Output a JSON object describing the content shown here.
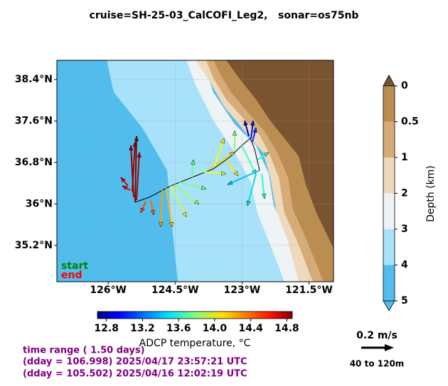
{
  "title": "cruise=SH-25-03_CalCOFI_Leg2,   sonar=os75nb",
  "map": {
    "xlim": [
      -127.15,
      -120.95
    ],
    "ylim": [
      34.5,
      38.77
    ],
    "lat_ticks": [
      {
        "value": 38.4,
        "label": "38.4°N"
      },
      {
        "value": 37.6,
        "label": "37.6°N"
      },
      {
        "value": 36.8,
        "label": "36.8°N"
      },
      {
        "value": 36,
        "label": "36°N"
      },
      {
        "value": 35.2,
        "label": "35.2°N"
      }
    ],
    "lon_ticks": [
      {
        "value": -126,
        "label": "126°W"
      },
      {
        "value": -124.5,
        "label": "124.5°W"
      },
      {
        "value": -123,
        "label": "123°W"
      },
      {
        "value": -121.5,
        "label": "121.5°W"
      }
    ],
    "legend": [
      {
        "label": "start",
        "color": "#008000"
      },
      {
        "label": "end",
        "color": "#ff0000"
      }
    ]
  },
  "temperature_colorbar": {
    "label": "ADCP temperature, °C",
    "lim": [
      12.7,
      14.86
    ],
    "ticks": [
      12.8,
      13.2,
      13.6,
      {
        "value": 14,
        "label": "14.0"
      },
      14.4,
      14.8
    ]
  },
  "depth_colorbar": {
    "label": "Depth (km)",
    "ticks": [
      0,
      0.5,
      1,
      2,
      3,
      4,
      5
    ],
    "colors": [
      "#bb8d50",
      "#d6ab78",
      "#efd9bd",
      "#eef3f6",
      "#a8e2fa",
      "#52bded"
    ],
    "top_color": "#7a5430",
    "bottom_color": "#52bded"
  },
  "scale": {
    "speed": "0.2 m/s",
    "depth_range": "40 to 120m"
  },
  "time": {
    "range": "time range ( 1.50 days)",
    "end": "(dday = 106.998) 2025/04/17 23:57:21 UTC",
    "start": "(dday = 105.502) 2025/04/16 12:02:19 UTC"
  }
}
